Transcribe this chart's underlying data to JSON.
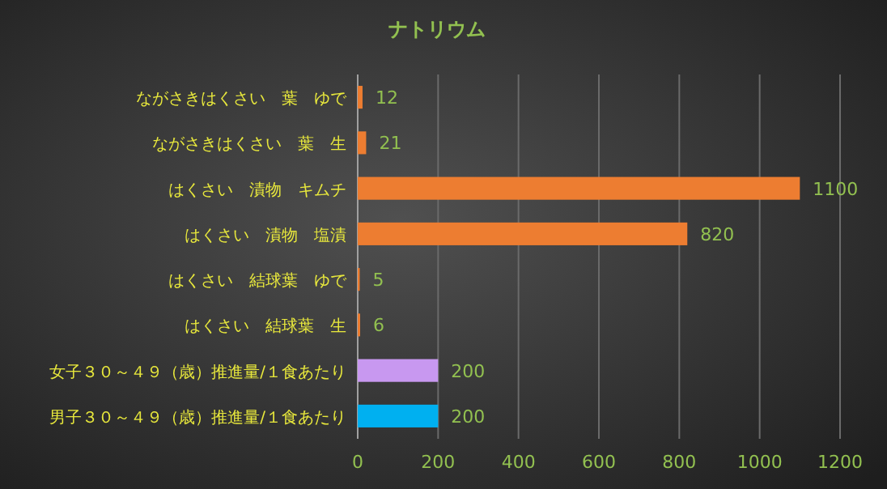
{
  "chart_data": {
    "type": "bar",
    "orientation": "horizontal",
    "title": "ナトリウム",
    "categories": [
      "ながさきはくさい　葉　ゆで",
      "ながさきはくさい　葉　生",
      "はくさい　漬物　キムチ",
      "はくさい　漬物　塩漬",
      "はくさい　結球葉　ゆで",
      "はくさい　結球葉　生",
      "女子３０～４９（歳）推進量/１食あたり",
      "男子３０～４９（歳）推進量/１食あたり"
    ],
    "values": [
      12,
      21,
      1100,
      820,
      5,
      6,
      200,
      200
    ],
    "colors": [
      "#ed7d31",
      "#ed7d31",
      "#ed7d31",
      "#ed7d31",
      "#ed7d31",
      "#ed7d31",
      "#c898f0",
      "#00b0f0"
    ],
    "xlim": [
      0,
      1200
    ],
    "xticks": [
      0,
      200,
      400,
      600,
      800,
      1000,
      1200
    ],
    "grid": "x",
    "data_labels": true
  }
}
